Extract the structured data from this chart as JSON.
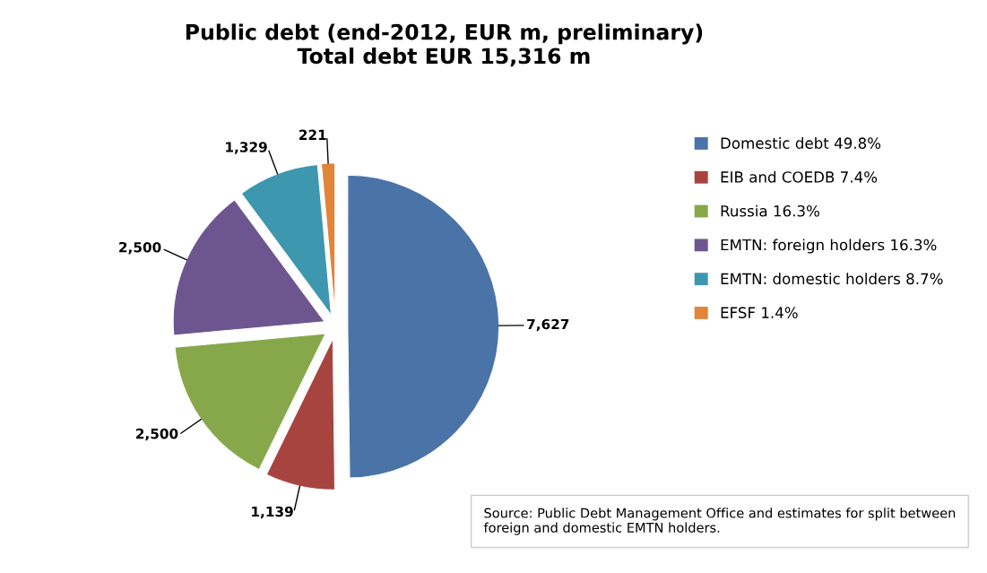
{
  "chart_data": {
    "type": "pie",
    "title": "Public debt (end-2012, EUR m, preliminary)\nTotal debt EUR 15,316 m",
    "categories": [
      "Domestic debt 49.8%",
      "EIB and COEDB 7.4%",
      "Russia 16.3%",
      "EMTN: foreign holders 16.3%",
      "EMTN: domestic holders 8.7%",
      "EFSF 1.4%"
    ],
    "values": [
      7627,
      1139,
      2500,
      2500,
      1329,
      221
    ],
    "colors": [
      "#4a73a8",
      "#a8443f",
      "#87a84a",
      "#6d5690",
      "#3d97ae",
      "#e0853a"
    ],
    "value_labels": [
      "7,627",
      "1,139",
      "2,500",
      "2,500",
      "1,329",
      "221"
    ],
    "legend": "right",
    "annotations": [
      "Source: Public Debt Management Office and estimates for split between foreign and domestic EMTN holders."
    ]
  }
}
